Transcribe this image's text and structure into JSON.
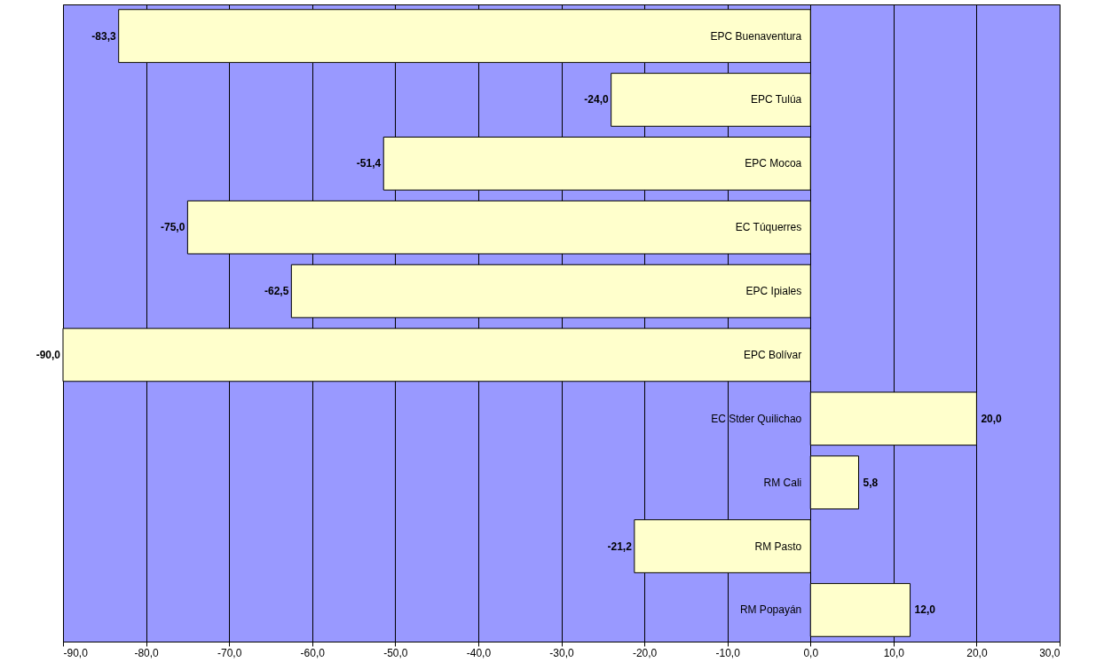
{
  "chart_data": {
    "type": "bar",
    "orientation": "horizontal",
    "categories": [
      "EPC Buenaventura",
      "EPC Tulúa",
      "EPC Mocoa",
      "EC Túquerres",
      "EPC Ipiales",
      "EPC Bolívar",
      "EC Stder Quilichao",
      "RM Cali",
      "RM Pasto",
      "RM Popayán"
    ],
    "values": [
      -83.3,
      -24.0,
      -51.4,
      -75.0,
      -62.5,
      -90.0,
      20.0,
      5.8,
      -21.2,
      12.0
    ],
    "value_labels": [
      "-83,3",
      "-24,0",
      "-51,4",
      "-75,0",
      "-62,5",
      "-90,0",
      "20,0",
      "5,8",
      "-21,2",
      "12,0"
    ],
    "color": "#ffffcc",
    "xlim": [
      -90,
      30
    ],
    "xticks": [
      {
        "value": -90,
        "label": "-90,0"
      },
      {
        "value": -80,
        "label": "-80,0"
      },
      {
        "value": -70,
        "label": "-70,0"
      },
      {
        "value": -60,
        "label": "-60,0"
      },
      {
        "value": -50,
        "label": "-50,0"
      },
      {
        "value": -40,
        "label": "-40,0"
      },
      {
        "value": -30,
        "label": "-30,0"
      },
      {
        "value": -20,
        "label": "-20,0"
      },
      {
        "value": -10,
        "label": "-10,0"
      },
      {
        "value": 0,
        "label": "0,0"
      },
      {
        "value": 10,
        "label": "10,0"
      },
      {
        "value": 20,
        "label": "20,0"
      },
      {
        "value": 30,
        "label": "30,0"
      }
    ],
    "grid": "x"
  }
}
